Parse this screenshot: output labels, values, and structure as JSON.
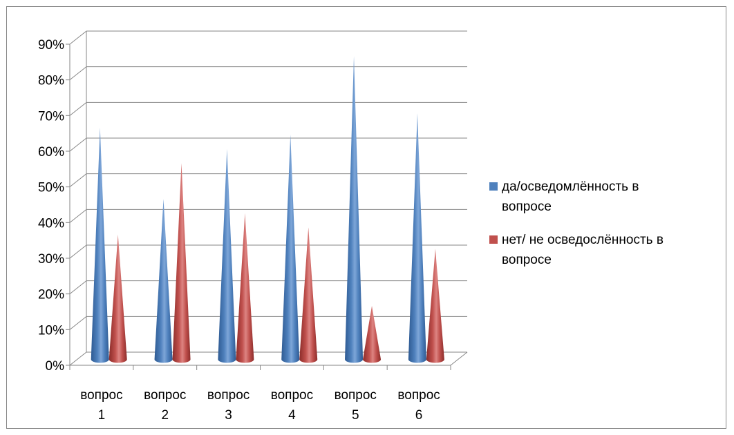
{
  "chart_data": {
    "type": "bar",
    "bar_shape": "cone",
    "view": "3d",
    "categories": [
      "вопрос 1",
      "вопрос 2",
      "вопрос 3",
      "вопрос 4",
      "вопрос 5",
      "вопрос 6"
    ],
    "category_lines": [
      [
        "вопрос",
        "1"
      ],
      [
        "вопрос",
        "2"
      ],
      [
        "вопрос",
        "3"
      ],
      [
        "вопрос",
        "4"
      ],
      [
        "вопрос",
        "5"
      ],
      [
        "вопрос",
        "6"
      ]
    ],
    "series": [
      {
        "name": "да/осведомлённость в вопросе",
        "name_lines": [
          "да/осведомлённость в",
          "вопросе"
        ],
        "color": "#4F81BD",
        "values": [
          65,
          45,
          59,
          63,
          85,
          69
        ]
      },
      {
        "name": "нет/ не осведослённость в вопросе",
        "name_lines": [
          "нет/ не осведослённость в",
          "вопросе"
        ],
        "color": "#C0504D",
        "values": [
          35,
          55,
          41,
          37,
          15,
          31
        ]
      }
    ],
    "y_ticks": [
      "0%",
      "10%",
      "20%",
      "30%",
      "40%",
      "50%",
      "60%",
      "70%",
      "80%",
      "90%"
    ],
    "ylim": [
      0,
      90
    ],
    "y_unit": "%",
    "grid": true,
    "legend_position": "right"
  }
}
